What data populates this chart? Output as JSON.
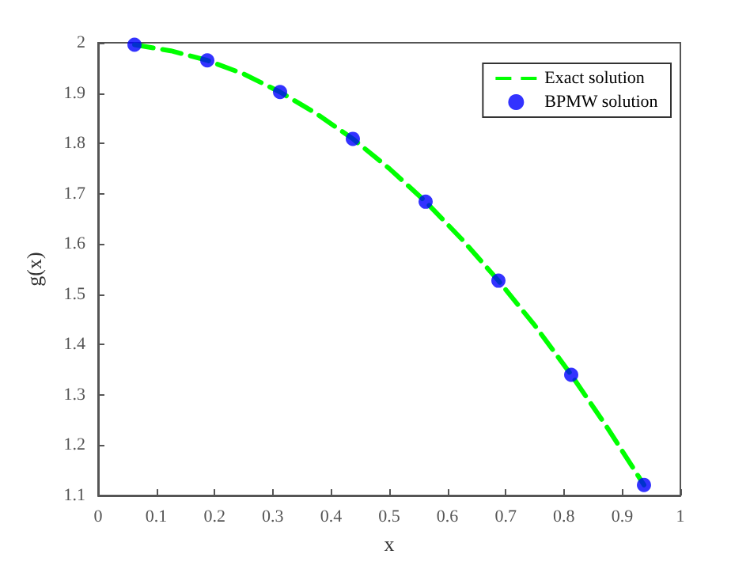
{
  "chart_data": {
    "type": "line",
    "xlabel": "x",
    "ylabel": "g(x)",
    "xlim": [
      0,
      1
    ],
    "xticks": [
      0,
      0.1,
      0.2,
      0.3,
      0.4,
      0.5,
      0.6,
      0.7,
      0.8,
      0.9,
      1
    ],
    "ylim": [
      1.1,
      2
    ],
    "yticks": [
      1.1,
      1.2,
      1.3,
      1.4,
      1.5,
      1.6,
      1.7,
      1.8,
      1.9,
      2
    ],
    "grid": false,
    "legend": "top right",
    "series": [
      {
        "name": "Exact solution",
        "color": "#00ff00",
        "line_style": "dashed",
        "marker": "none",
        "x": [
          0.0625,
          0.125,
          0.1875,
          0.25,
          0.3125,
          0.375,
          0.4375,
          0.5,
          0.5625,
          0.625,
          0.6875,
          0.75,
          0.8125,
          0.875,
          0.9375
        ],
        "values": [
          1.996,
          1.984,
          1.965,
          1.938,
          1.902,
          1.859,
          1.809,
          1.75,
          1.684,
          1.609,
          1.527,
          1.438,
          1.34,
          1.234,
          1.121
        ]
      },
      {
        "name": "BPMW solution",
        "type": "scatter",
        "color": "#0000ff",
        "marker": "circle",
        "x": [
          0.0625,
          0.1875,
          0.3125,
          0.4375,
          0.5625,
          0.6875,
          0.8125,
          0.9375
        ],
        "values": [
          1.996,
          1.965,
          1.902,
          1.809,
          1.684,
          1.527,
          1.34,
          1.121
        ]
      }
    ]
  }
}
